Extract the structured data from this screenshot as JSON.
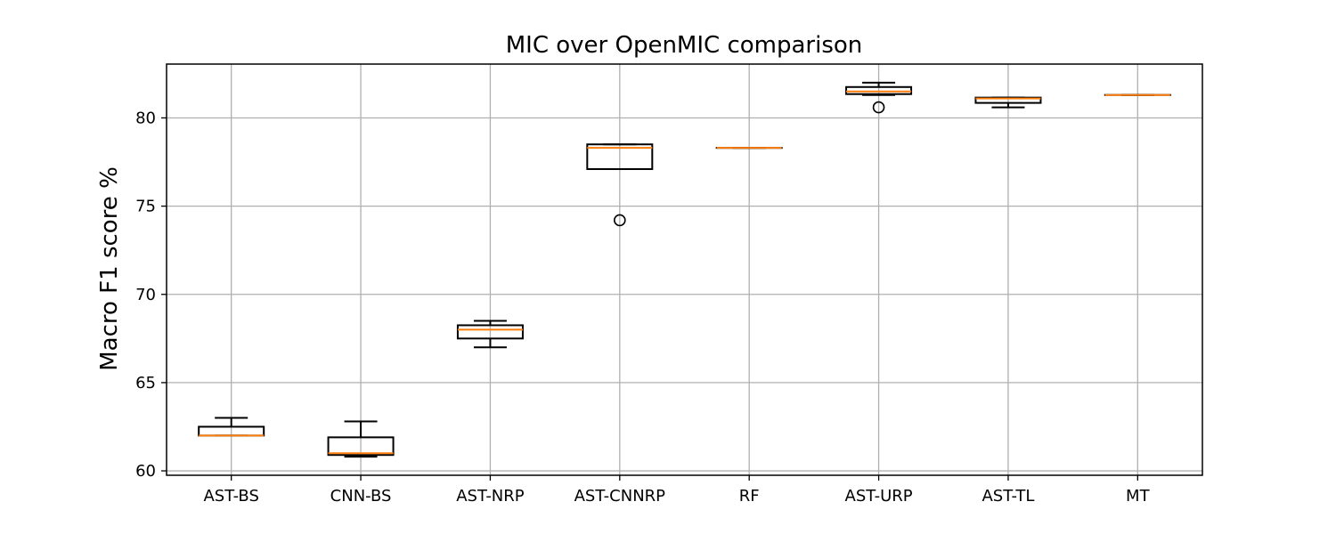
{
  "chart_data": {
    "type": "box",
    "title": "MIC over OpenMIC comparison",
    "xlabel": "",
    "ylabel": "Macro F1 score %",
    "ylim": [
      59.75,
      83.05
    ],
    "yticks": [
      60,
      65,
      70,
      75,
      80
    ],
    "grid": true,
    "colors": {
      "median": "#ff7f0e",
      "box": "#000000",
      "grid": "#b0b0b0"
    },
    "categories": [
      "AST-BS",
      "CNN-BS",
      "AST-NRP",
      "AST-CNNRP",
      "RF",
      "AST-URP",
      "AST-TL",
      "MT"
    ],
    "boxes": [
      {
        "label": "AST-BS",
        "whisker_low": 62.0,
        "q1": 62.0,
        "median": 62.0,
        "q3": 62.5,
        "whisker_high": 63.0,
        "fliers": []
      },
      {
        "label": "CNN-BS",
        "whisker_low": 60.8,
        "q1": 60.9,
        "median": 61.0,
        "q3": 61.9,
        "whisker_high": 62.8,
        "fliers": []
      },
      {
        "label": "AST-NRP",
        "whisker_low": 67.0,
        "q1": 67.5,
        "median": 68.0,
        "q3": 68.25,
        "whisker_high": 68.5,
        "fliers": []
      },
      {
        "label": "AST-CNNRP",
        "whisker_low": 77.1,
        "q1": 77.1,
        "median": 78.3,
        "q3": 78.5,
        "whisker_high": 78.5,
        "fliers": [
          74.2
        ]
      },
      {
        "label": "RF",
        "whisker_low": 78.3,
        "q1": 78.3,
        "median": 78.3,
        "q3": 78.3,
        "whisker_high": 78.3,
        "fliers": []
      },
      {
        "label": "AST-URP",
        "whisker_low": 81.3,
        "q1": 81.35,
        "median": 81.5,
        "q3": 81.75,
        "whisker_high": 82.0,
        "fliers": [
          80.6
        ]
      },
      {
        "label": "AST-TL",
        "whisker_low": 80.6,
        "q1": 80.85,
        "median": 81.1,
        "q3": 81.15,
        "whisker_high": 81.15,
        "fliers": []
      },
      {
        "label": "MT",
        "whisker_low": 81.3,
        "q1": 81.3,
        "median": 81.3,
        "q3": 81.3,
        "whisker_high": 81.3,
        "fliers": []
      }
    ]
  }
}
